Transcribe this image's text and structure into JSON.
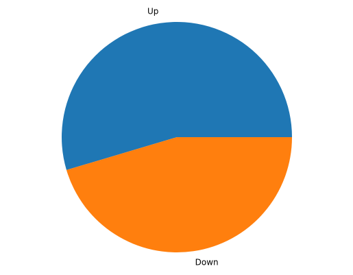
{
  "chart_data": {
    "type": "pie",
    "labels": [
      "Up",
      "Down"
    ],
    "values": [
      54.6,
      45.4
    ],
    "colors": [
      "#1f77b4",
      "#ff7f0e"
    ],
    "start_angle_deg": 0,
    "direction": "counterclockwise"
  }
}
